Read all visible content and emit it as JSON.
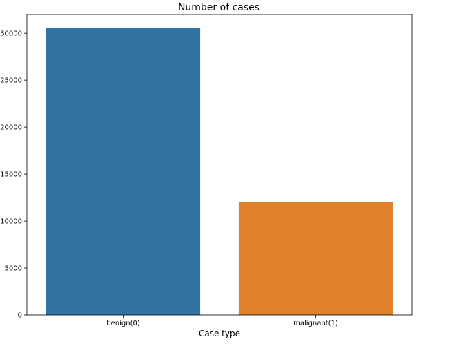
{
  "chart_data": {
    "type": "bar",
    "title": "Number of cases",
    "xlabel": "Case type",
    "ylabel": "",
    "categories": [
      "benign(0)",
      "malignant(1)"
    ],
    "values": [
      30600,
      12000
    ],
    "colors": [
      "#3274a1",
      "#e1812c"
    ],
    "ylim": [
      0,
      32000
    ],
    "yticks": [
      0,
      5000,
      10000,
      15000,
      20000,
      25000,
      30000
    ],
    "grid": false,
    "legend": "none"
  }
}
